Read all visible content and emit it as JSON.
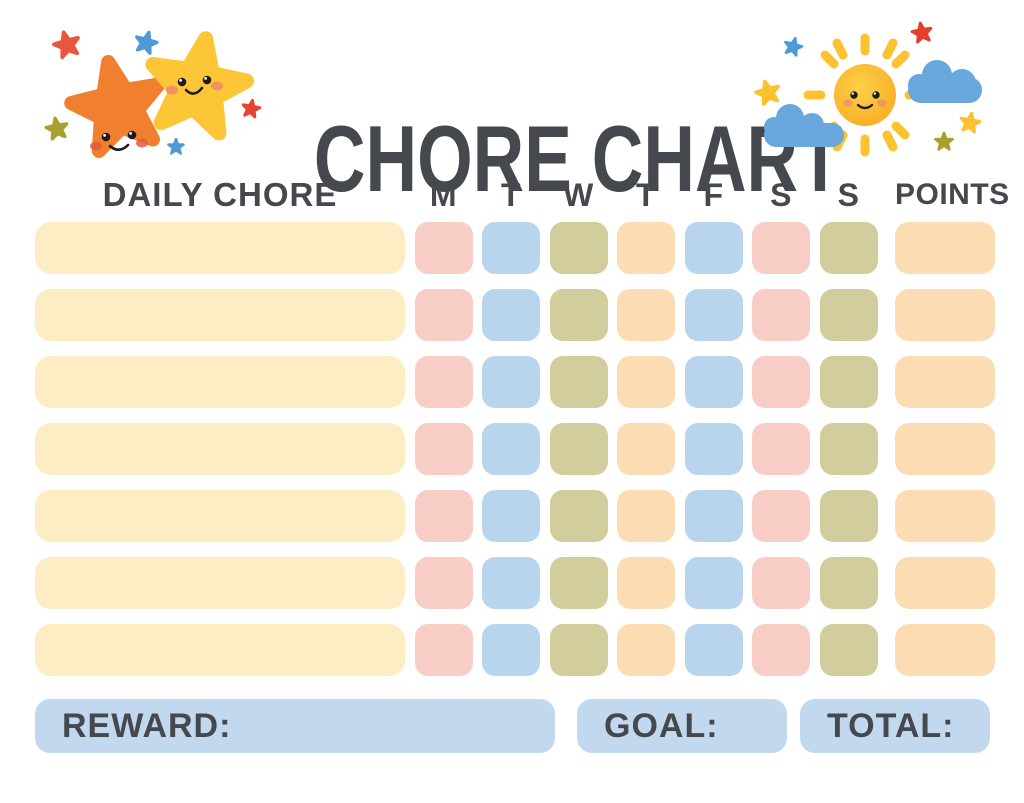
{
  "title": "CHORE CHART",
  "header": {
    "daily_chore": "DAILY CHORE",
    "days": [
      "M",
      "T",
      "W",
      "T",
      "F",
      "S",
      "S"
    ],
    "points": "POINTS"
  },
  "grid": {
    "row_count": 7,
    "chore_values": [
      "",
      "",
      "",
      "",
      "",
      "",
      ""
    ],
    "points_values": [
      "",
      "",
      "",
      "",
      "",
      "",
      ""
    ]
  },
  "footer": {
    "reward_label": "REWARD:",
    "goal_label": "GOAL:",
    "total_label": "TOTAL:"
  },
  "colors": {
    "text": "#45484d",
    "chore_cell": "#fcedc4",
    "day_cells": [
      "#f8cdc6",
      "#b9d5ee",
      "#d1cd9c",
      "#fcdcb2",
      "#b9d5ee",
      "#f8cdc6",
      "#d1cd9c"
    ],
    "points_cell": "#fcdcb2",
    "footer_box": "#c2d8ef",
    "star_orange": "#f08030",
    "star_yellow": "#fdc636",
    "sun_body": "#fbbb2a",
    "sun_rays": "#fcc230",
    "cloud_blue": "#68a8dc",
    "accent_red": "#e8563f",
    "accent_blue": "#4f9ad6",
    "accent_olive": "#a7a130"
  },
  "decorations": {
    "left": "two smiling stars",
    "right": "smiling sun with clouds"
  }
}
